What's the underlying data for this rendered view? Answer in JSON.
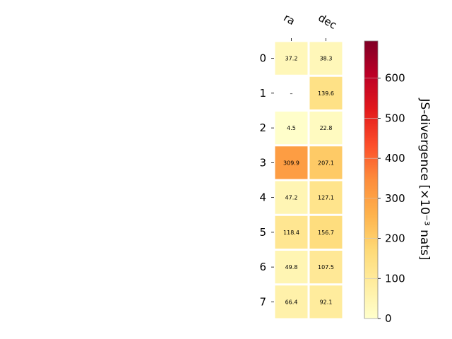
{
  "chart_data": {
    "type": "heatmap",
    "columns": [
      "ra",
      "dec"
    ],
    "rows": [
      "0",
      "1",
      "2",
      "3",
      "4",
      "5",
      "6",
      "7"
    ],
    "values": [
      [
        37.2,
        38.3
      ],
      [
        null,
        139.6
      ],
      [
        4.5,
        22.8
      ],
      [
        309.9,
        207.1
      ],
      [
        47.2,
        127.1
      ],
      [
        118.4,
        156.7
      ],
      [
        49.8,
        107.5
      ],
      [
        66.4,
        92.1
      ]
    ],
    "cell_labels": [
      [
        "37.2",
        "38.3"
      ],
      [
        "–",
        "139.6"
      ],
      [
        "4.5",
        "22.8"
      ],
      [
        "309.9",
        "207.1"
      ],
      [
        "47.2",
        "127.1"
      ],
      [
        "118.4",
        "156.7"
      ],
      [
        "49.8",
        "107.5"
      ],
      [
        "66.4",
        "92.1"
      ]
    ],
    "colorbar": {
      "label": "JS-divergence [×10⁻³ nats]",
      "range": [
        0,
        693
      ],
      "ticks": [
        "0",
        "100",
        "200",
        "300",
        "400",
        "500",
        "600"
      ],
      "tick_values": [
        0,
        100,
        200,
        300,
        400,
        500,
        600
      ],
      "colormap": "YlOrRd"
    },
    "colors": {
      "cmap_stops": [
        "#ffffcc",
        "#ffeda0",
        "#fed976",
        "#feb24c",
        "#fd8d3c",
        "#fc4e2a",
        "#e31a1c",
        "#bd0026",
        "#800026"
      ]
    }
  }
}
